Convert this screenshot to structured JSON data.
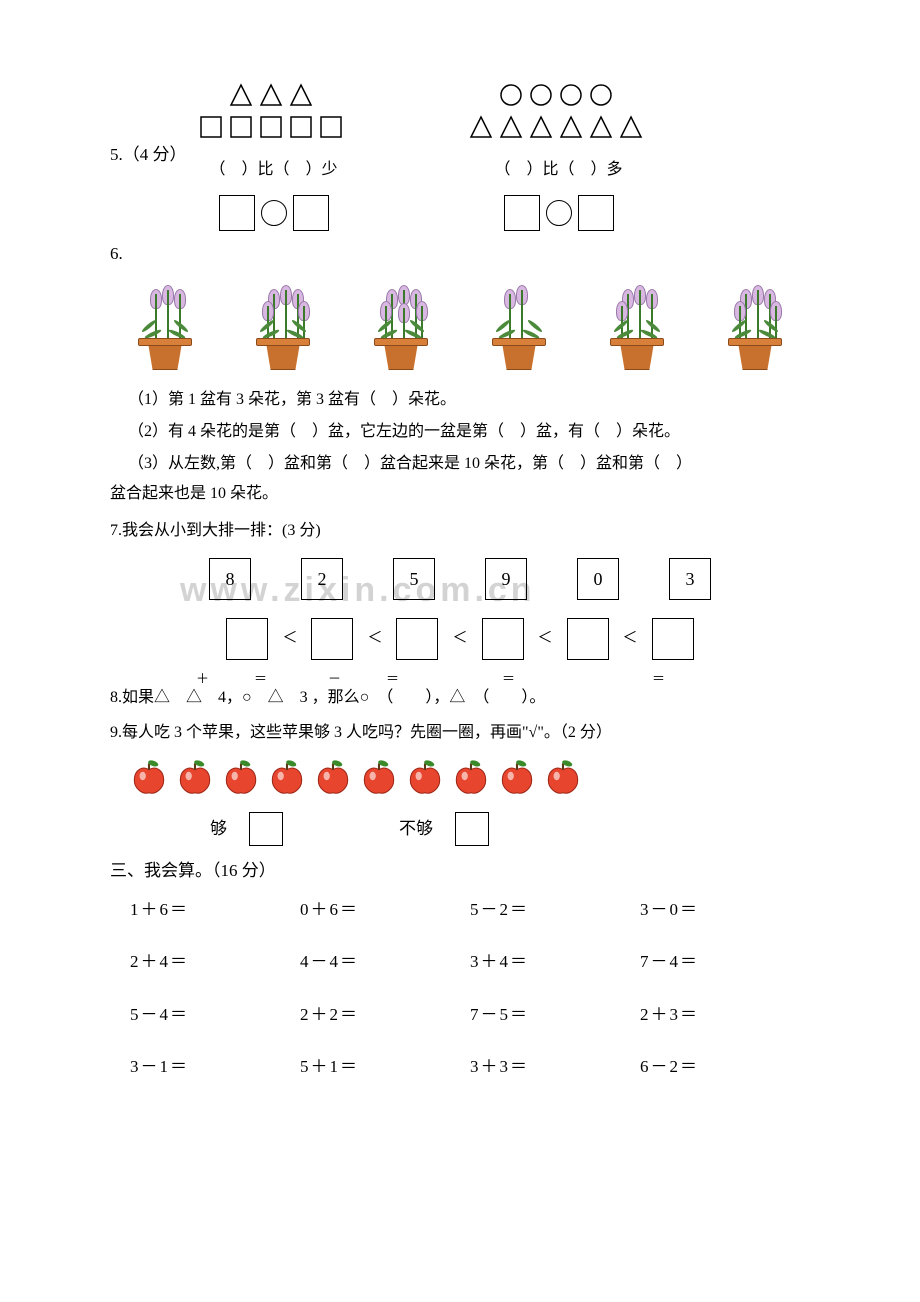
{
  "q5": {
    "label": "5.（4 分）",
    "left": {
      "line1_shapes": "△△△",
      "line2_shapes": "□□□□□",
      "text": "（　）比（　）少"
    },
    "right": {
      "line1_shapes": "○○○○",
      "line2_shapes": "△△△△△△",
      "text": "（　）比（　）多"
    }
  },
  "q6": {
    "label": "6.",
    "plants": [
      {
        "flowers": 3,
        "color": "#d8b8e0"
      },
      {
        "flowers": 5,
        "color": "#d8b8e0"
      },
      {
        "flowers": 6,
        "color": "#d8b8e0"
      },
      {
        "flowers": 2,
        "color": "#d8b8e0"
      },
      {
        "flowers": 4,
        "color": "#d8b8e0"
      },
      {
        "flowers": 5,
        "color": "#d8b8e0"
      }
    ],
    "line1": "（1）第 1 盆有 3 朵花，第 3 盆有（　）朵花。",
    "line2": "（2）有 4 朵花的是第（　）盆，它左边的一盆是第（　）盆，有（　）朵花。",
    "line3": "（3）从左数,第（　）盆和第（　）盆合起来是 10 朵花，第（　）盆和第（　）",
    "line3b": "盆合起来也是 10 朵花。"
  },
  "q7": {
    "label": "7.我会从小到大排一排：(3 分)",
    "numbers": [
      "8",
      "2",
      "5",
      "9",
      "0",
      "3"
    ]
  },
  "q8": {
    "top_symbols": [
      "＋",
      "＝",
      "－",
      "＝",
      "＝",
      "＝"
    ],
    "text": "8.如果△　△　4，○　△　3 ，那么○　（　　），△　（　　）。"
  },
  "q9": {
    "label": "9.每人吃 3 个苹果，这些苹果够 3 人吃吗？先圈一圈，再画\"√\"。（2 分）",
    "apple_count": 10,
    "apple_color": "#e8452e",
    "apple_leaf": "#3a8a2a",
    "enough_label": "够",
    "not_enough_label": "不够"
  },
  "section3": {
    "title": "三、我会算。（16 分）",
    "problems": [
      "1＋6＝",
      "0＋6＝",
      "5－2＝",
      "3－0＝",
      "2＋4＝",
      "4－4＝",
      "3＋4＝",
      "7－4＝",
      "5－4＝",
      "2＋2＝",
      "7－5＝",
      "2＋3＝",
      "3－1＝",
      "5＋1＝",
      "3＋3＝",
      "6－2＝"
    ]
  },
  "watermark": "www.zixin.com.cn"
}
